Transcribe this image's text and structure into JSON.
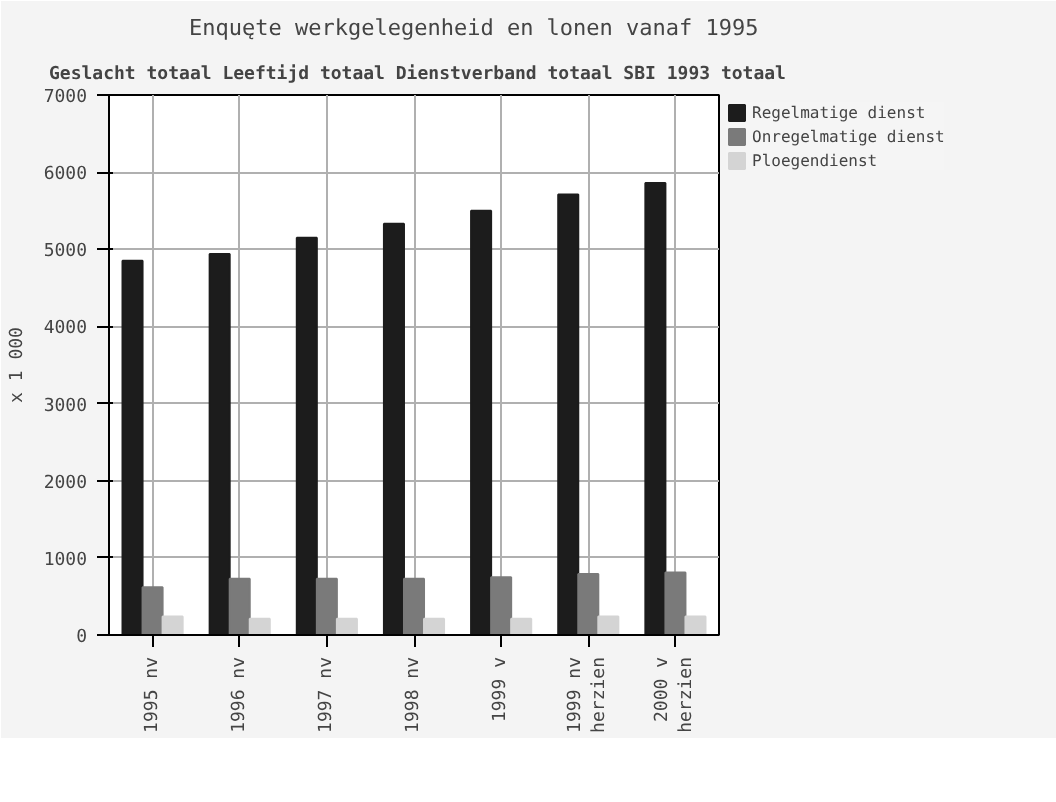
{
  "chart_data": {
    "type": "bar",
    "title": "Enquęte werkgelegenheid en lonen vanaf 1995",
    "subtitle": "Geslacht totaal Leeftijd totaal Dienstverband totaal SBI 1993 totaal",
    "ylabel": "x 1 000",
    "categories": [
      "1995 nv",
      "1996 nv",
      "1997 nv",
      "1998 nv",
      "1999 v",
      "1999 nv herzien",
      "2000 v herzien"
    ],
    "series": [
      {
        "name": "Regelmatige dienst",
        "color": "#1c1c1c",
        "values": [
          4850,
          4940,
          5150,
          5330,
          5500,
          5710,
          5860
        ]
      },
      {
        "name": "Onregelmatige dienst",
        "color": "#7a7a7a",
        "values": [
          620,
          730,
          730,
          730,
          750,
          790,
          810
        ]
      },
      {
        "name": "Ploegendienst",
        "color": "#d4d4d4",
        "values": [
          240,
          210,
          210,
          210,
          210,
          240,
          240
        ]
      }
    ],
    "ylim": [
      0,
      7000
    ],
    "yticks": [
      0,
      1000,
      2000,
      3000,
      4000,
      5000,
      6000,
      7000
    ],
    "grid": true,
    "legend": "top right"
  }
}
